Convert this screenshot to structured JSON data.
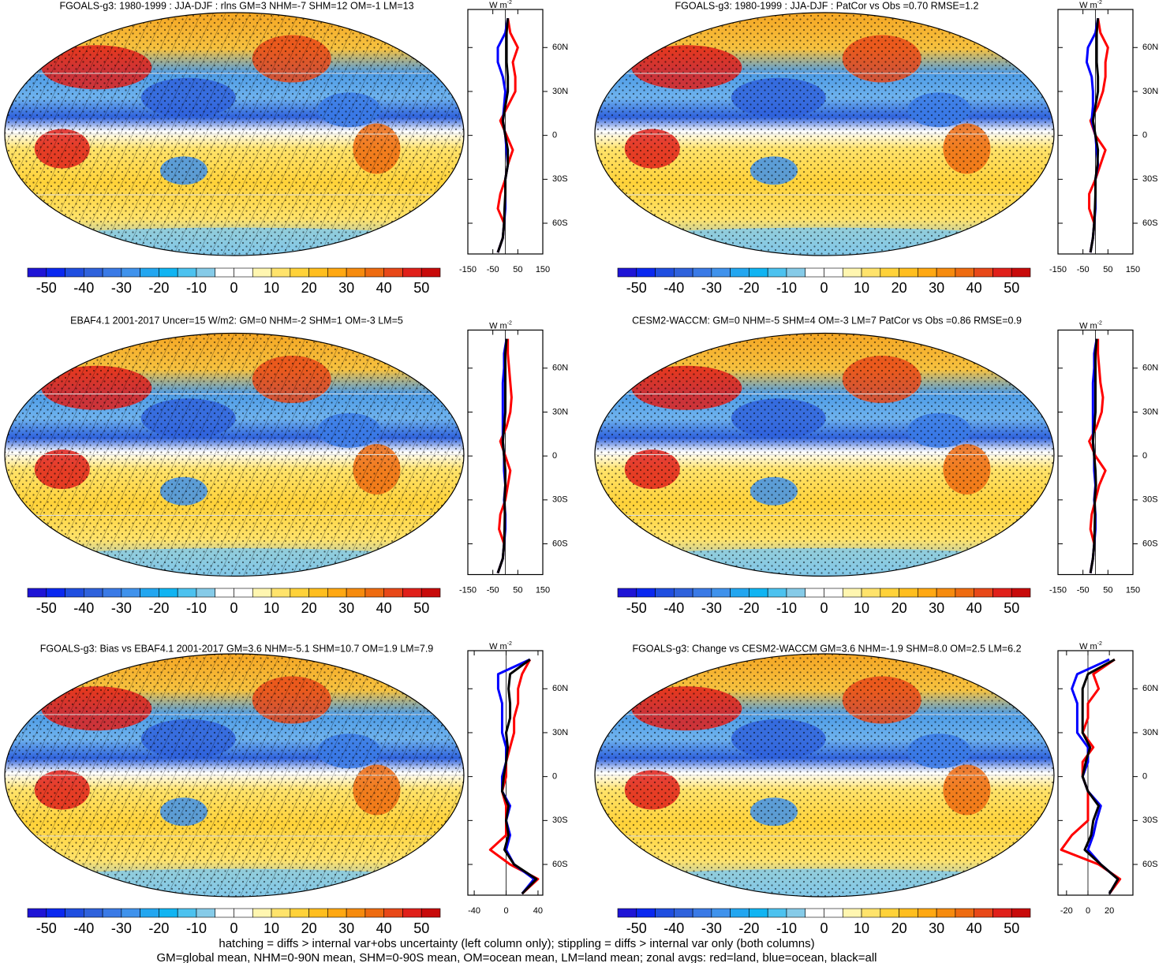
{
  "zonal_unit": {
    "base": "W m",
    "exp": "-2"
  },
  "colorbar": {
    "clim": [
      -55,
      55
    ],
    "labels": [
      -50,
      -40,
      -30,
      -20,
      -10,
      0,
      10,
      20,
      30,
      40,
      50
    ],
    "colors": [
      "#1e14d6",
      "#0a28f0",
      "#1f4ee0",
      "#2f62dc",
      "#3a7ae6",
      "#3f92ec",
      "#22a6f0",
      "#10b4f2",
      "#4cc2ef",
      "#86cbe8",
      "#ffffff",
      "#ffffff",
      "#fff6b0",
      "#ffe36b",
      "#ffd239",
      "#ffbe1e",
      "#ffa812",
      "#f68b0e",
      "#ee6b10",
      "#e84818",
      "#e0201a",
      "#c80a0a"
    ]
  },
  "panels": [
    {
      "title": "FGOALS-g3: 1980-1999 : JJA-DJF : rlns GM=3 NHM=-7 SHM=12 OM=-1 LM=13",
      "zonal": {
        "type": "line",
        "xlim": [
          -150,
          150
        ],
        "xticks": [
          -150,
          -50,
          50,
          150
        ],
        "ylim": [
          -81,
          86
        ],
        "yticks": [
          {
            "value": 60,
            "label": "60N"
          },
          {
            "value": 30,
            "label": "30N"
          },
          0,
          {
            "value": -30,
            "label": "30S"
          },
          {
            "value": -60,
            "label": "60S"
          }
        ],
        "lat": [
          -80,
          -70,
          -60,
          -50,
          -40,
          -30,
          -20,
          -10,
          0,
          10,
          20,
          30,
          40,
          50,
          60,
          70,
          80
        ],
        "series": [
          {
            "color": "#ff0000",
            "values": [
              -30,
              -10,
              -5,
              -30,
              -20,
              0,
              10,
              30,
              5,
              -20,
              10,
              40,
              40,
              30,
              50,
              20,
              10
            ]
          },
          {
            "color": "#0000ff",
            "values": [
              -30,
              -10,
              -5,
              0,
              0,
              0,
              10,
              5,
              0,
              -10,
              -5,
              0,
              -10,
              -30,
              -30,
              0,
              10
            ]
          },
          {
            "color": "#000000",
            "values": [
              -30,
              -10,
              -5,
              -3,
              0,
              0,
              10,
              10,
              0,
              -10,
              0,
              10,
              10,
              5,
              5,
              5,
              10
            ]
          }
        ]
      }
    },
    {
      "title": "FGOALS-g3: 1980-1999 : JJA-DJF : PatCor vs Obs =0.70 RMSE=1.2",
      "zonal": {
        "type": "line",
        "xlim": [
          -150,
          150
        ],
        "xticks": [
          -150,
          -50,
          50,
          150
        ],
        "ylim": [
          -81,
          86
        ],
        "yticks": [
          {
            "value": 60,
            "label": "60N"
          },
          {
            "value": 30,
            "label": "30N"
          },
          0,
          {
            "value": -30,
            "label": "30S"
          },
          {
            "value": -60,
            "label": "60S"
          }
        ],
        "lat": [
          -80,
          -70,
          -60,
          -50,
          -40,
          -30,
          -20,
          -10,
          0,
          10,
          20,
          30,
          40,
          50,
          60,
          70,
          80
        ],
        "series": [
          {
            "color": "#ff0000",
            "values": [
              -20,
              -10,
              -5,
              -25,
              -25,
              0,
              20,
              40,
              0,
              -20,
              10,
              30,
              40,
              40,
              50,
              20,
              10
            ]
          },
          {
            "color": "#0000ff",
            "values": [
              -20,
              -10,
              -5,
              0,
              0,
              0,
              10,
              5,
              0,
              -15,
              -10,
              -10,
              -15,
              -35,
              -30,
              0,
              10
            ]
          },
          {
            "color": "#000000",
            "values": [
              -20,
              -10,
              -5,
              -2,
              0,
              0,
              8,
              10,
              0,
              -10,
              0,
              10,
              10,
              5,
              5,
              5,
              10
            ]
          }
        ]
      }
    },
    {
      "title": "EBAF4.1 2001-2017 Uncer=15 W/m2: GM=0 NHM=-2 SHM=1 OM=-3 LM=5",
      "zonal": {
        "type": "line",
        "xlim": [
          -150,
          150
        ],
        "xticks": [
          -150,
          -50,
          50,
          150
        ],
        "ylim": [
          -81,
          86
        ],
        "yticks": [
          {
            "value": 60,
            "label": "60N"
          },
          {
            "value": 30,
            "label": "30N"
          },
          0,
          {
            "value": -30,
            "label": "30S"
          },
          {
            "value": -60,
            "label": "60S"
          }
        ],
        "lat": [
          -80,
          -70,
          -60,
          -50,
          -40,
          -30,
          -20,
          -10,
          0,
          10,
          20,
          30,
          40,
          50,
          60,
          70,
          80
        ],
        "series": [
          {
            "color": "#ff0000",
            "values": [
              -30,
              -10,
              -5,
              -25,
              -20,
              0,
              10,
              20,
              0,
              -20,
              5,
              20,
              25,
              20,
              15,
              10,
              10
            ]
          },
          {
            "color": "#0000ff",
            "values": [
              -30,
              -10,
              -5,
              0,
              0,
              -5,
              0,
              -5,
              -5,
              -10,
              -10,
              -10,
              -10,
              -10,
              -5,
              -5,
              5
            ]
          },
          {
            "color": "#000000",
            "values": [
              -30,
              -10,
              -5,
              -3,
              -2,
              -3,
              0,
              0,
              -5,
              -10,
              -5,
              0,
              0,
              0,
              0,
              0,
              5
            ]
          }
        ]
      }
    },
    {
      "title": "CESM2-WACCM: GM=0 NHM=-5 SHM=4 OM=-3 LM=7 PatCor vs Obs =0.86 RMSE=0.9",
      "zonal": {
        "type": "line",
        "xlim": [
          -150,
          150
        ],
        "xticks": [
          -150,
          -50,
          50,
          150
        ],
        "ylim": [
          -81,
          86
        ],
        "yticks": [
          {
            "value": 60,
            "label": "60N"
          },
          {
            "value": 30,
            "label": "30N"
          },
          0,
          {
            "value": -30,
            "label": "30S"
          },
          {
            "value": -60,
            "label": "60S"
          }
        ],
        "lat": [
          -80,
          -70,
          -60,
          -50,
          -40,
          -30,
          -20,
          -10,
          0,
          10,
          20,
          30,
          40,
          50,
          60,
          70,
          80
        ],
        "series": [
          {
            "color": "#ff0000",
            "values": [
              -20,
              -10,
              -5,
              -20,
              -15,
              0,
              15,
              40,
              0,
              -25,
              5,
              25,
              30,
              20,
              15,
              10,
              10
            ]
          },
          {
            "color": "#0000ff",
            "values": [
              -20,
              -10,
              -5,
              0,
              0,
              -5,
              0,
              -5,
              -5,
              -10,
              -10,
              -10,
              -10,
              -10,
              -5,
              -5,
              5
            ]
          },
          {
            "color": "#000000",
            "values": [
              -20,
              -10,
              -5,
              -3,
              -2,
              -3,
              2,
              0,
              -5,
              -10,
              -5,
              0,
              0,
              0,
              0,
              0,
              5
            ]
          }
        ]
      }
    },
    {
      "title": "FGOALS-g3: Bias vs EBAF4.1 2001-2017 GM=3.6 NHM=-5.1 SHM=10.7 OM=1.9 LM=7.9",
      "zonal": {
        "type": "line",
        "xlim": [
          -48,
          46
        ],
        "xticks": [
          -40,
          0,
          40
        ],
        "ylim": [
          -81,
          86
        ],
        "yticks": [
          {
            "value": 60,
            "label": "60N"
          },
          {
            "value": 30,
            "label": "30N"
          },
          0,
          {
            "value": -30,
            "label": "30S"
          },
          {
            "value": -60,
            "label": "60S"
          }
        ],
        "lat": [
          -80,
          -70,
          -60,
          -50,
          -40,
          -30,
          -20,
          -10,
          0,
          10,
          20,
          30,
          40,
          50,
          60,
          70,
          80
        ],
        "series": [
          {
            "color": "#ff0000",
            "values": [
              20,
              40,
              5,
              -20,
              0,
              0,
              0,
              -5,
              0,
              0,
              5,
              10,
              10,
              15,
              15,
              20,
              30
            ]
          },
          {
            "color": "#0000ff",
            "values": [
              20,
              35,
              10,
              0,
              5,
              0,
              5,
              -5,
              -5,
              0,
              0,
              -5,
              -5,
              -5,
              -10,
              -10,
              30
            ]
          },
          {
            "color": "#000000",
            "values": [
              20,
              38,
              10,
              -2,
              3,
              0,
              3,
              -5,
              -3,
              0,
              2,
              0,
              5,
              5,
              3,
              5,
              30
            ]
          }
        ]
      }
    },
    {
      "title": "FGOALS-g3: Change vs CESM2-WACCM GM=3.6 NHM=-1.9 SHM=8.0 OM=2.5 LM=6.2",
      "zonal": {
        "type": "line",
        "xlim": [
          -28,
          42
        ],
        "xticks": [
          -20,
          0,
          20
        ],
        "ylim": [
          -81,
          86
        ],
        "yticks": [
          {
            "value": 60,
            "label": "60N"
          },
          {
            "value": 30,
            "label": "30N"
          },
          0,
          {
            "value": -30,
            "label": "30S"
          },
          {
            "value": -60,
            "label": "60S"
          }
        ],
        "lat": [
          -80,
          -70,
          -60,
          -50,
          -40,
          -30,
          -20,
          -10,
          0,
          10,
          20,
          30,
          40,
          50,
          60,
          70,
          80
        ],
        "series": [
          {
            "color": "#ff0000",
            "values": [
              20,
              30,
              10,
              -25,
              -15,
              0,
              0,
              0,
              -5,
              -5,
              5,
              -5,
              0,
              0,
              10,
              5,
              25
            ]
          },
          {
            "color": "#0000ff",
            "values": [
              20,
              28,
              12,
              0,
              5,
              8,
              12,
              0,
              -5,
              0,
              0,
              -10,
              -10,
              -10,
              -15,
              -10,
              20
            ]
          },
          {
            "color": "#000000",
            "values": [
              20,
              28,
              12,
              -3,
              3,
              5,
              10,
              0,
              -5,
              -2,
              2,
              -5,
              -5,
              -5,
              -5,
              0,
              25
            ]
          }
        ]
      }
    }
  ],
  "footnotes": [
    "hatching = diffs > internal var+obs uncertainty (left column only); stippling = diffs > internal var only (both columns)",
    "GM=global mean, NHM=0-90N mean, SHM=0-90S mean, OM=ocean mean, LM=land mean; zonal avgs: red=land, blue=ocean, black=all"
  ]
}
